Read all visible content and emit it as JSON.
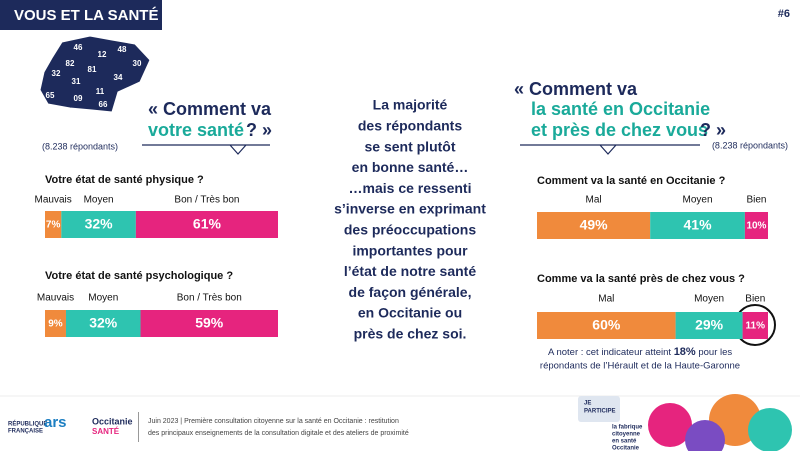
{
  "page": {
    "header": "VOUS ET LA SANTÉ",
    "page_number": "#6",
    "map_labels": [
      "46",
      "12",
      "48",
      "82",
      "81",
      "30",
      "32",
      "31",
      "34",
      "65",
      "09",
      "11",
      "66"
    ],
    "left_question": [
      "« Comment va",
      "votre santé",
      " ? »"
    ],
    "left_respondents": "(8.238 répondants)",
    "middle_text": [
      "La majorité",
      "des répondants",
      "se sent plutôt",
      "en bonne santé…",
      "…mais ce ressenti",
      "s’inverse en exprimant",
      "des préoccupations",
      "importantes pour",
      "l’état de notre santé",
      "de façon générale,",
      "en Occitanie ou",
      "près de chez soi."
    ],
    "right_question": [
      "« Comment va",
      "la santé en Occitanie",
      "et près de chez vous",
      " ? »"
    ],
    "right_respondents": "(8.238 répondants)",
    "note": [
      "A noter : cet indicateur atteint ",
      "18%",
      " pour les",
      "répondants de l’Hérault et de la Haute-Garonne"
    ],
    "footer": [
      "Juin 2023 | Première consultation citoyenne sur la santé en Occitanie : restitution",
      "des principaux enseignements de la consultation digitale et des ateliers de proximité"
    ],
    "logos": [
      "RÉPUBLIQUE",
      "FRANÇAISE",
      "ars",
      "Occitanie",
      "SANTÉ"
    ],
    "illustration": [
      "JE",
      "PARTICIPE",
      "la fabrique",
      "citoyenne",
      "en santé",
      "Occitanie"
    ]
  },
  "chart_data": [
    {
      "type": "stacked_bar",
      "title": "Votre état de santé physique ?",
      "categories": [
        null
      ],
      "xlim": [
        0,
        100
      ],
      "series": [
        {
          "name": "Mauvais",
          "color": "#f08a3c",
          "values": [
            7
          ],
          "value_labels": [
            "7%"
          ]
        },
        {
          "name": "Moyen",
          "color": "#2ec4b0",
          "values": [
            32
          ],
          "value_labels": [
            "32%"
          ]
        },
        {
          "name": "Bon / Très bon",
          "color": "#e6247e",
          "values": [
            61
          ],
          "value_labels": [
            "61%"
          ]
        }
      ]
    },
    {
      "type": "stacked_bar",
      "title": "Votre état de santé psychologique ?",
      "categories": [
        null
      ],
      "xlim": [
        0,
        100
      ],
      "series": [
        {
          "name": "Mauvais",
          "color": "#f08a3c",
          "values": [
            9
          ],
          "value_labels": [
            "9%"
          ]
        },
        {
          "name": "Moyen",
          "color": "#2ec4b0",
          "values": [
            32
          ],
          "value_labels": [
            "32%"
          ]
        },
        {
          "name": "Bon / Très bon",
          "color": "#e6247e",
          "values": [
            59
          ],
          "value_labels": [
            "59%"
          ]
        }
      ]
    },
    {
      "type": "stacked_bar",
      "title": "Comment va la santé en Occitanie ?",
      "categories": [
        null
      ],
      "xlim": [
        0,
        100
      ],
      "series": [
        {
          "name": "Mal",
          "color": "#f08a3c",
          "values": [
            49
          ],
          "value_labels": [
            "49%"
          ]
        },
        {
          "name": "Moyen",
          "color": "#2ec4b0",
          "values": [
            41
          ],
          "value_labels": [
            "41%"
          ]
        },
        {
          "name": "Bien",
          "color": "#e6247e",
          "values": [
            10
          ],
          "value_labels": [
            "10%"
          ]
        }
      ]
    },
    {
      "type": "stacked_bar",
      "title": "Comme va la santé près de chez vous ?",
      "categories": [
        null
      ],
      "xlim": [
        0,
        100
      ],
      "series": [
        {
          "name": "Mal",
          "color": "#f08a3c",
          "values": [
            60
          ],
          "value_labels": [
            "60%"
          ]
        },
        {
          "name": "Moyen",
          "color": "#2ec4b0",
          "values": [
            29
          ],
          "value_labels": [
            "29%"
          ]
        },
        {
          "name": "Bien",
          "color": "#e6247e",
          "values": [
            11
          ],
          "value_labels": [
            "11%"
          ]
        }
      ]
    }
  ]
}
